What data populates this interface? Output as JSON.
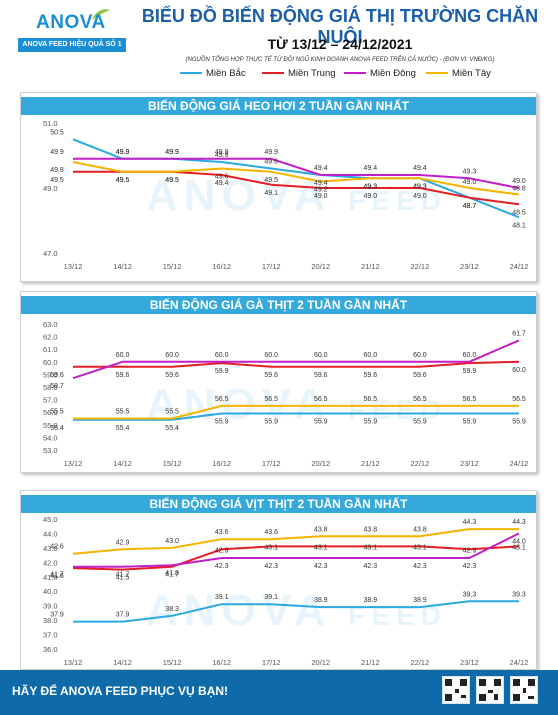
{
  "header": {
    "brand": "ANOVA",
    "brand_suffix": "FEED",
    "slogan": "ANOVA FEED HIỆU QUẢ SỐ 1",
    "title": "BIỂU ĐỒ BIẾN ĐỘNG GIÁ THỊ TRƯỜNG CHĂN NUÔI",
    "date_range": "TỪ 13/12 – 24/12/2021",
    "source": "(NGUỒN TỔNG HỢP THỰC TẾ TỪ ĐỘI NGŨ KINH DOANH ANOVA FEED TRÊN CẢ NƯỚC)   -   (ĐƠN VỊ: VNĐ/KG)"
  },
  "legend": [
    {
      "name": "Miền Bắc",
      "color": "#29a9e0"
    },
    {
      "name": "Miền Trung",
      "color": "#e31e24"
    },
    {
      "name": "Miền Đông",
      "color": "#c21fc7"
    },
    {
      "name": "Miền Tây",
      "color": "#f5b400"
    }
  ],
  "watermark": {
    "brand": "ANOVA",
    "suffix": "FEED"
  },
  "chart_data": [
    {
      "type": "line",
      "title": "BIẾN ĐỘNG GIÁ HEO HƠI 2 TUẦN GẦN NHẤT",
      "categories": [
        "13/12",
        "14/12",
        "15/12",
        "16/12",
        "17/12",
        "20/12",
        "21/12",
        "22/12",
        "23/12",
        "24/12"
      ],
      "ylim": [
        47.0,
        51.0
      ],
      "yticks": [
        "47.0",
        "49.0",
        "51.0"
      ],
      "series": [
        {
          "name": "Miền Bắc",
          "color": "#29a9e0",
          "values": [
            50.5,
            49.9,
            49.9,
            49.8,
            49.6,
            49.4,
            49.3,
            49.3,
            48.7,
            48.1
          ]
        },
        {
          "name": "Miền Trung",
          "color": "#e31e24",
          "values": [
            49.5,
            49.5,
            49.5,
            49.4,
            49.1,
            49.0,
            49.0,
            49.0,
            48.7,
            48.5
          ]
        },
        {
          "name": "Miền Đông",
          "color": "#c21fc7",
          "values": [
            49.9,
            49.9,
            49.9,
            49.9,
            49.9,
            49.4,
            49.4,
            49.4,
            49.3,
            49.0
          ]
        },
        {
          "name": "Miền Tây",
          "color": "#f5b400",
          "values": [
            49.8,
            49.5,
            49.5,
            49.6,
            49.5,
            49.2,
            49.3,
            49.3,
            49.0,
            48.8
          ]
        }
      ]
    },
    {
      "type": "line",
      "title": "BIẾN ĐỘNG GIÁ GÀ THỊT 2 TUẦN GẦN NHẤT",
      "categories": [
        "13/12",
        "14/12",
        "15/12",
        "16/12",
        "17/12",
        "20/12",
        "21/12",
        "22/12",
        "23/12",
        "24/12"
      ],
      "ylim": [
        53.0,
        63.0
      ],
      "yticks": [
        "53.0",
        "54.0",
        "55.0",
        "56.0",
        "57.0",
        "58.0",
        "59.0",
        "60.0",
        "61.0",
        "62.0",
        "63.0"
      ],
      "series": [
        {
          "name": "Miền Bắc",
          "color": "#29a9e0",
          "values": [
            55.4,
            55.4,
            55.4,
            55.9,
            55.9,
            55.9,
            55.9,
            55.9,
            55.9,
            55.9
          ]
        },
        {
          "name": "Miền Trung",
          "color": "#e31e24",
          "values": [
            59.6,
            59.6,
            59.6,
            59.9,
            59.6,
            59.6,
            59.6,
            59.6,
            59.9,
            60.0
          ]
        },
        {
          "name": "Miền Đông",
          "color": "#c21fc7",
          "values": [
            58.7,
            60.0,
            60.0,
            60.0,
            60.0,
            60.0,
            60.0,
            60.0,
            60.0,
            61.7
          ]
        },
        {
          "name": "Miền Tây",
          "color": "#f5b400",
          "values": [
            55.5,
            55.5,
            55.5,
            56.5,
            56.5,
            56.5,
            56.5,
            56.5,
            56.5,
            56.5
          ]
        }
      ]
    },
    {
      "type": "line",
      "title": "BIẾN ĐỘNG GIÁ VỊT THỊT 2 TUẦN GẦN NHẤT",
      "categories": [
        "13/12",
        "14/12",
        "15/12",
        "16/12",
        "17/12",
        "20/12",
        "21/12",
        "22/12",
        "23/12",
        "24/12"
      ],
      "ylim": [
        36.0,
        45.0
      ],
      "yticks": [
        "36.0",
        "37.0",
        "38.0",
        "39.0",
        "40.0",
        "41.0",
        "42.0",
        "43.0",
        "44.0",
        "45.0"
      ],
      "series": [
        {
          "name": "Miền Bắc",
          "color": "#29a9e0",
          "values": [
            37.9,
            37.9,
            38.3,
            39.1,
            39.1,
            38.9,
            38.9,
            38.9,
            39.3,
            39.3
          ]
        },
        {
          "name": "Miền Trung",
          "color": "#e31e24",
          "values": [
            41.6,
            41.5,
            41.7,
            42.9,
            43.1,
            43.1,
            43.1,
            43.1,
            42.9,
            43.1
          ]
        },
        {
          "name": "Miền Đông",
          "color": "#c21fc7",
          "values": [
            41.7,
            41.7,
            41.8,
            42.3,
            42.3,
            42.3,
            42.3,
            42.3,
            42.3,
            44.0
          ]
        },
        {
          "name": "Miền Tây",
          "color": "#f5b400",
          "values": [
            42.6,
            42.9,
            43.0,
            43.6,
            43.6,
            43.8,
            43.8,
            43.8,
            44.3,
            44.3
          ]
        }
      ]
    }
  ],
  "footer": {
    "tagline": "HÃY ĐỂ ANOVA FEED PHỤC VỤ BẠN!"
  }
}
